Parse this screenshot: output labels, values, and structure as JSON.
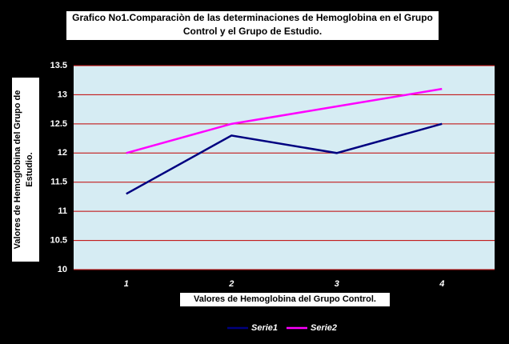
{
  "chart_data": {
    "type": "line",
    "title": "Grafico No1.Comparaciòn de las determinaciones de Hemoglobina en el Grupo Control y el Grupo de Estudio.",
    "x_label": "Valores de Hemoglobina del Grupo Control.",
    "y_label": "Valores de Hemoglobina del Grupo de Estudio.",
    "categories": [
      "1",
      "2",
      "3",
      "4"
    ],
    "series": [
      {
        "name": "Serie1",
        "color": "#000080",
        "values": [
          11.3,
          12.3,
          12,
          12.5
        ]
      },
      {
        "name": "Serie2",
        "color": "#ff00ff",
        "values": [
          12,
          12.5,
          12.8,
          13.1
        ]
      }
    ],
    "ylim": [
      10,
      13.5
    ],
    "yticks": [
      10,
      10.5,
      11,
      11.5,
      12,
      12.5,
      13,
      13.5
    ],
    "grid": true,
    "grid_color": "#c00000",
    "legend": "bottom"
  }
}
